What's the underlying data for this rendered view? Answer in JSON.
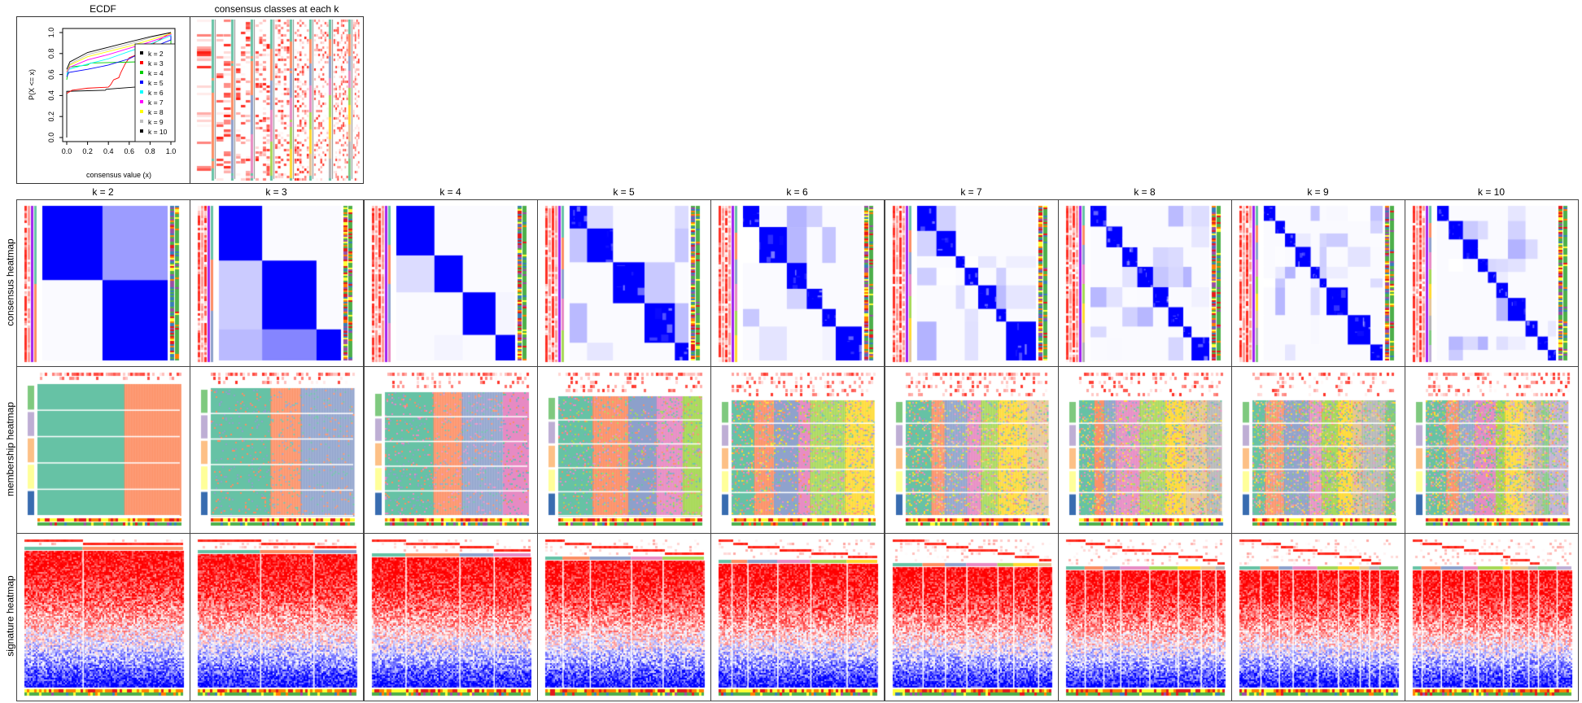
{
  "titles": {
    "ecdf": "ECDF",
    "classes": "consensus classes at each k",
    "row_consensus": "consensus heatmap",
    "row_membership": "membership heatmap",
    "row_signature": "signature heatmap"
  },
  "k_labels": [
    "k = 2",
    "k = 3",
    "k = 4",
    "k = 5",
    "k = 6",
    "k = 7",
    "k = 8",
    "k = 9",
    "k = 10"
  ],
  "chart_data": [
    {
      "type": "line",
      "title": "ECDF",
      "xlabel": "consensus value (x)",
      "ylabel": "P(X <= x)",
      "xlim": [
        0,
        1
      ],
      "ylim": [
        0,
        1
      ],
      "xticks": [
        "0.0",
        "0.2",
        "0.4",
        "0.6",
        "0.8",
        "1.0"
      ],
      "yticks": [
        "0.0",
        "0.2",
        "0.4",
        "0.6",
        "0.8",
        "1.0"
      ],
      "legend": "right",
      "series": [
        {
          "name": "k = 2",
          "color": "#000000",
          "points": [
            [
              0,
              0
            ],
            [
              0,
              0.44
            ],
            [
              0.37,
              0.45
            ],
            [
              0.38,
              0.46
            ],
            [
              0.65,
              0.48
            ],
            [
              1,
              0.5
            ],
            [
              1,
              1
            ]
          ]
        },
        {
          "name": "k = 3",
          "color": "#FF0000",
          "points": [
            [
              0,
              0.42
            ],
            [
              0.05,
              0.45
            ],
            [
              0.2,
              0.47
            ],
            [
              0.4,
              0.48
            ],
            [
              0.42,
              0.5
            ],
            [
              0.45,
              0.55
            ],
            [
              0.5,
              0.57
            ],
            [
              0.52,
              0.62
            ],
            [
              0.56,
              0.7
            ],
            [
              0.6,
              0.76
            ],
            [
              0.65,
              0.78
            ],
            [
              1,
              1
            ]
          ]
        },
        {
          "name": "k = 4",
          "color": "#00CD00",
          "points": [
            [
              0,
              0.55
            ],
            [
              0.02,
              0.67
            ],
            [
              0.2,
              0.69
            ],
            [
              0.23,
              0.71
            ],
            [
              0.65,
              0.72
            ],
            [
              1,
              0.72
            ],
            [
              1,
              1
            ]
          ]
        },
        {
          "name": "k = 5",
          "color": "#0000FF",
          "points": [
            [
              0,
              0.58
            ],
            [
              0.02,
              0.62
            ],
            [
              0.2,
              0.65
            ],
            [
              0.4,
              0.69
            ],
            [
              0.6,
              0.75
            ],
            [
              0.8,
              0.85
            ],
            [
              1,
              0.93
            ],
            [
              1,
              1
            ]
          ]
        },
        {
          "name": "k = 6",
          "color": "#00FFFF",
          "points": [
            [
              0,
              0.6
            ],
            [
              0.02,
              0.65
            ],
            [
              0.2,
              0.7
            ],
            [
              0.4,
              0.75
            ],
            [
              0.6,
              0.82
            ],
            [
              0.8,
              0.89
            ],
            [
              1,
              0.97
            ],
            [
              1,
              1
            ]
          ]
        },
        {
          "name": "k = 7",
          "color": "#FF00FF",
          "points": [
            [
              0,
              0.62
            ],
            [
              0.03,
              0.67
            ],
            [
              0.2,
              0.74
            ],
            [
              0.4,
              0.79
            ],
            [
              0.6,
              0.85
            ],
            [
              0.8,
              0.91
            ],
            [
              1,
              0.98
            ],
            [
              1,
              1
            ]
          ]
        },
        {
          "name": "k = 8",
          "color": "#FFFF00",
          "points": [
            [
              0,
              0.63
            ],
            [
              0.03,
              0.69
            ],
            [
              0.2,
              0.77
            ],
            [
              0.4,
              0.82
            ],
            [
              0.6,
              0.87
            ],
            [
              0.8,
              0.93
            ],
            [
              1,
              0.99
            ],
            [
              1,
              1
            ]
          ]
        },
        {
          "name": "k = 9",
          "color": "#BEBEBE",
          "points": [
            [
              0,
              0.64
            ],
            [
              0.03,
              0.7
            ],
            [
              0.2,
              0.79
            ],
            [
              0.4,
              0.84
            ],
            [
              0.6,
              0.89
            ],
            [
              0.8,
              0.95
            ],
            [
              1,
              1
            ]
          ]
        },
        {
          "name": "k = 10",
          "color": "#000000",
          "points": [
            [
              0,
              0.65
            ],
            [
              0.03,
              0.72
            ],
            [
              0.2,
              0.81
            ],
            [
              0.4,
              0.86
            ],
            [
              0.6,
              0.91
            ],
            [
              0.8,
              0.96
            ],
            [
              1,
              1
            ]
          ]
        }
      ]
    },
    {
      "type": "heatmap",
      "title": "consensus classes at each k",
      "k": [
        2,
        3,
        4,
        5,
        6,
        7,
        8,
        9,
        10
      ]
    },
    {
      "type": "heatmap",
      "title": "consensus heatmap",
      "k": [
        2,
        3,
        4,
        5,
        6,
        7,
        8,
        9,
        10
      ],
      "low_color": "#FFFFFF",
      "high_color": "#0000FF"
    },
    {
      "type": "heatmap",
      "title": "membership heatmap",
      "k": [
        2,
        3,
        4,
        5,
        6,
        7,
        8,
        9,
        10
      ],
      "class_colors": [
        "#66C2A5",
        "#FC8D62",
        "#8DA0CB",
        "#E78AC3",
        "#A6D854",
        "#FFD92F",
        "#E5C494",
        "#B3B3B3",
        "#7FC97F",
        "#BEAED4"
      ],
      "group_colors": [
        "#7FC97F",
        "#BEAED4",
        "#FDC086",
        "#FFFF99",
        "#386CB0"
      ]
    },
    {
      "type": "heatmap",
      "title": "signature heatmap",
      "k": [
        2,
        3,
        4,
        5,
        6,
        7,
        8,
        9,
        10
      ],
      "low_color": "#0000FF",
      "mid_color": "#FFFFFF",
      "high_color": "#FF0000"
    }
  ]
}
